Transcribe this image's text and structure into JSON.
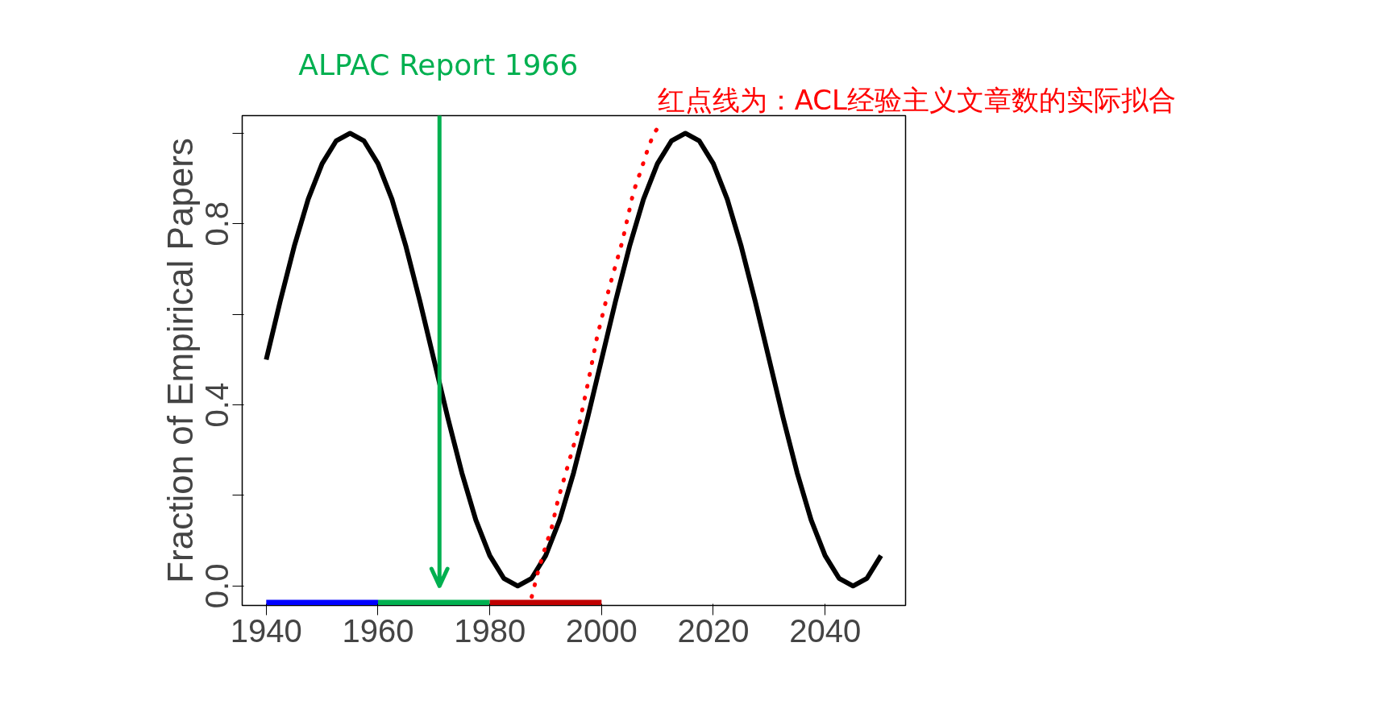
{
  "chart_data": {
    "type": "line",
    "ylabel": "Fraction of Empirical Papers",
    "xlim": [
      1935.7,
      2054.4
    ],
    "ylim": [
      -0.043,
      1.039
    ],
    "xticks": [
      1940,
      1960,
      1980,
      2000,
      2020,
      2040
    ],
    "yticks": [
      {
        "value": 0,
        "label": "0.0"
      },
      {
        "value": 0.2,
        "label": null
      },
      0.4,
      {
        "value": 0.6,
        "label": null
      },
      0.8,
      {
        "value": 1.0,
        "label": null
      }
    ],
    "grid": false,
    "ref_lines": [
      {
        "axis": "x",
        "value": 1971,
        "label": "ALPAC Report 1966",
        "color": "#00b050"
      }
    ],
    "series": [
      {
        "color": "#0000ff",
        "line_style": "solid",
        "x": [
          1940,
          1960
        ],
        "values": [
          -0.041,
          -0.041
        ]
      },
      {
        "color": "#00b050",
        "line_style": "solid",
        "x": [
          1960,
          1980
        ],
        "values": [
          -0.041,
          -0.041
        ]
      },
      {
        "color": "#c00000",
        "line_style": "solid",
        "x": [
          1980,
          2000
        ],
        "values": [
          -0.041,
          -0.041
        ]
      },
      {
        "color": "#000000",
        "line_style": "solid",
        "x": [
          1940,
          1942.5,
          1945,
          1947.5,
          1950,
          1952.5,
          1955,
          1957.5,
          1960,
          1962.5,
          1965,
          1967.5,
          1970,
          1972.5,
          1975,
          1977.5,
          1980,
          1982.5,
          1985,
          1987.5,
          1990,
          1992.5,
          1995,
          1997.5,
          2000,
          2002.5,
          2005,
          2007.5,
          2010,
          2012.5,
          2015,
          2017.5,
          2020,
          2022.5,
          2025,
          2027.5,
          2030,
          2032.5,
          2035,
          2037.5,
          2040,
          2042.5,
          2045,
          2047.5,
          2050
        ],
        "values": [
          0.5,
          0.629,
          0.75,
          0.854,
          0.933,
          0.983,
          1.0,
          0.983,
          0.933,
          0.854,
          0.75,
          0.629,
          0.5,
          0.371,
          0.25,
          0.146,
          0.067,
          0.017,
          0.0,
          0.017,
          0.067,
          0.146,
          0.25,
          0.371,
          0.5,
          0.629,
          0.75,
          0.854,
          0.933,
          0.983,
          1.0,
          0.983,
          0.933,
          0.854,
          0.75,
          0.629,
          0.5,
          0.371,
          0.25,
          0.146,
          0.067,
          0.017,
          0.0,
          0.017,
          0.067
        ]
      },
      {
        "color": "#ff0000",
        "line_style": "dotted",
        "x": [
          1987.5,
          1988.6,
          1989.8,
          1991.1,
          1992.2,
          1995.7,
          1997.6,
          1999.2,
          2001.4,
          2003.7,
          2005.7,
          2007.1,
          2008.4,
          2009.4,
          2010.5
        ],
        "values": [
          -0.024,
          0.03,
          0.08,
          0.13,
          0.19,
          0.34,
          0.45,
          0.55,
          0.66,
          0.76,
          0.87,
          0.92,
          0.97,
          1.0,
          1.02
        ]
      }
    ],
    "annotations": [
      "红点线为：ACL经验主义文章数的实际拟合"
    ]
  }
}
